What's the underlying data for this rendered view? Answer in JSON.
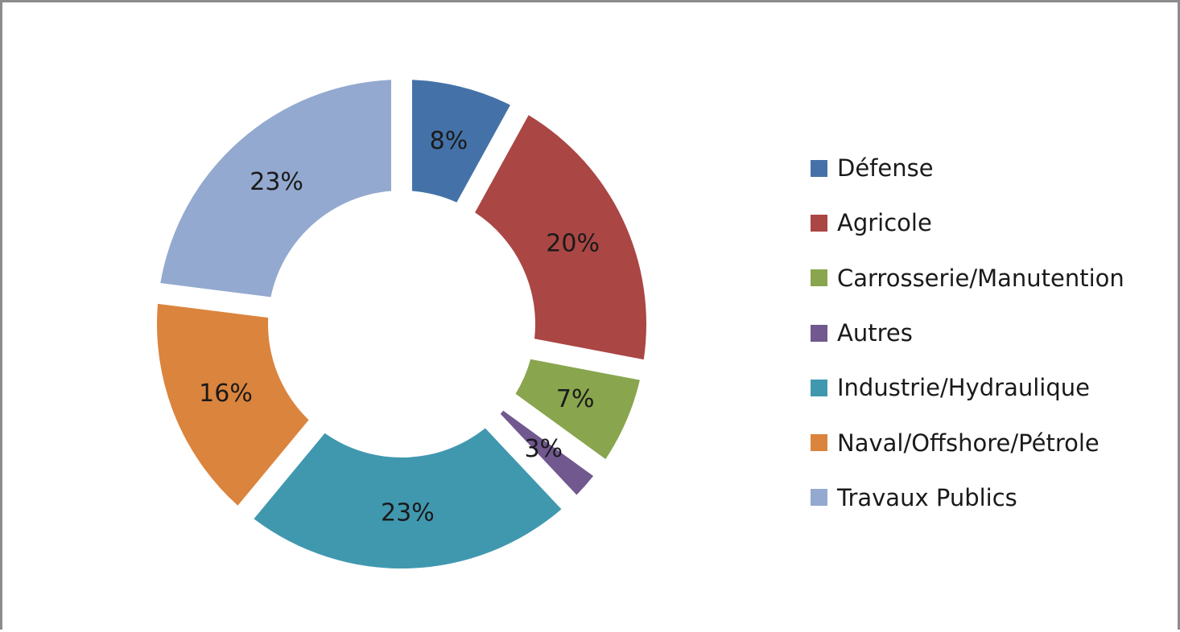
{
  "chart_data": {
    "type": "pie",
    "variant": "donut",
    "exploded": true,
    "title": "",
    "legend_position": "right",
    "categories": [
      "Défense",
      "Agricole",
      "Carrosserie/Manutention",
      "Autres",
      "Industrie/Hydraulique",
      "Naval/Offshore/Pétrole",
      "Travaux Publics"
    ],
    "values": [
      8,
      20,
      7,
      3,
      23,
      16,
      23
    ],
    "labels": [
      "8%",
      "20%",
      "7%",
      "3%",
      "23%",
      "16%",
      "23%"
    ],
    "colors": [
      "#4472a8",
      "#aa4644",
      "#89a54e",
      "#71588f",
      "#4098af",
      "#db843d",
      "#93a9cf"
    ]
  }
}
